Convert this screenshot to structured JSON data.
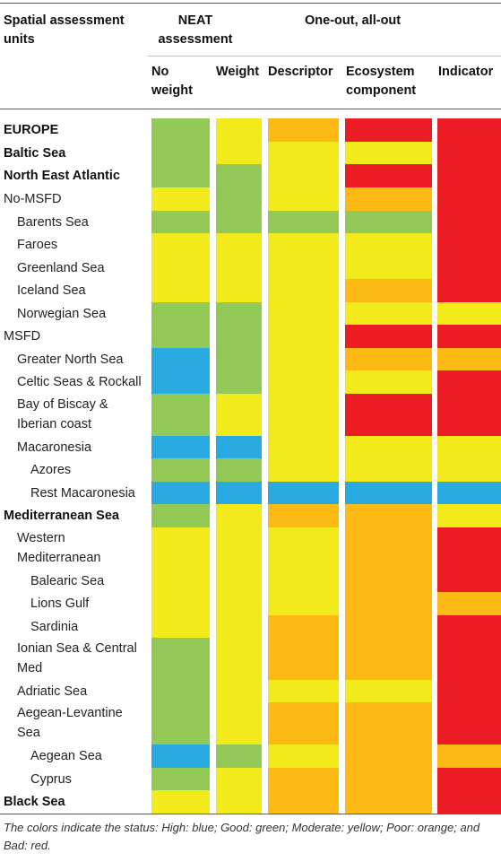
{
  "header": {
    "spatial": "Spatial assessment units",
    "neat": "NEAT assessment",
    "ooao": "One-out, all-out",
    "no_weight": "No weight",
    "weight": "Weight",
    "descriptor": "Descriptor",
    "ecosystem": "Ecosystem component",
    "indicator": "Indicator"
  },
  "status_colors": {
    "blue": "#29ABE2",
    "green": "#92C957",
    "yellow": "#F3EA1C",
    "orange": "#FDBA14",
    "red": "#EC1C24"
  },
  "rows": [
    {
      "label": "EUROPE",
      "bold": true,
      "indent": 0
    },
    {
      "label": "Baltic Sea",
      "bold": true,
      "indent": 0
    },
    {
      "label": "North East Atlantic",
      "bold": true,
      "indent": 0
    },
    {
      "label": "No-MSFD",
      "bold": false,
      "indent": 0
    },
    {
      "label": "Barents Sea",
      "bold": false,
      "indent": 1
    },
    {
      "label": "Faroes",
      "bold": false,
      "indent": 1
    },
    {
      "label": "Greenland Sea",
      "bold": false,
      "indent": 1
    },
    {
      "label": "Iceland Sea",
      "bold": false,
      "indent": 1
    },
    {
      "label": "Norwegian Sea",
      "bold": false,
      "indent": 1
    },
    {
      "label": "MSFD",
      "bold": false,
      "indent": 0
    },
    {
      "label": "Greater North Sea",
      "bold": false,
      "indent": 1
    },
    {
      "label": "Celtic Seas & Rockall",
      "bold": false,
      "indent": 1
    },
    {
      "label": "Bay of Biscay & Iberian coast",
      "bold": false,
      "indent": 1
    },
    {
      "label": "Macaronesia",
      "bold": false,
      "indent": 1
    },
    {
      "label": "Azores",
      "bold": false,
      "indent": 2
    },
    {
      "label": "Rest Macaronesia",
      "bold": false,
      "indent": 2
    },
    {
      "label": "Mediterranean Sea",
      "bold": true,
      "indent": 0
    },
    {
      "label": "Western Mediterranean",
      "bold": false,
      "indent": 1
    },
    {
      "label": "Balearic Sea",
      "bold": false,
      "indent": 2
    },
    {
      "label": "Lions Gulf",
      "bold": false,
      "indent": 2
    },
    {
      "label": "Sardinia",
      "bold": false,
      "indent": 2
    },
    {
      "label": "Ionian Sea & Central Med",
      "bold": false,
      "indent": 1
    },
    {
      "label": "Adriatic Sea",
      "bold": false,
      "indent": 1
    },
    {
      "label": "Aegean-Levantine Sea",
      "bold": false,
      "indent": 1
    },
    {
      "label": "Aegean Sea",
      "bold": false,
      "indent": 2
    },
    {
      "label": "Cyprus",
      "bold": false,
      "indent": 2
    },
    {
      "label": "Black Sea",
      "bold": true,
      "indent": 0
    }
  ],
  "status": {
    "no_weight": [
      "green",
      "green",
      "green",
      "yellow",
      "green",
      "yellow",
      "yellow",
      "yellow",
      "green",
      "green",
      "blue",
      "blue",
      "green",
      "blue",
      "green",
      "blue",
      "green",
      "yellow",
      "yellow",
      "yellow",
      "yellow",
      "green",
      "green",
      "green",
      "blue",
      "green",
      "yellow"
    ],
    "weight": [
      "yellow",
      "yellow",
      "green",
      "green",
      "green",
      "yellow",
      "yellow",
      "yellow",
      "green",
      "green",
      "green",
      "green",
      "yellow",
      "blue",
      "green",
      "blue",
      "yellow",
      "yellow",
      "yellow",
      "yellow",
      "yellow",
      "yellow",
      "yellow",
      "yellow",
      "green",
      "yellow",
      "yellow"
    ],
    "descriptor": [
      "orange",
      "yellow",
      "yellow",
      "yellow",
      "green",
      "yellow",
      "yellow",
      "yellow",
      "yellow",
      "yellow",
      "yellow",
      "yellow",
      "yellow",
      "yellow",
      "yellow",
      "blue",
      "orange",
      "yellow",
      "yellow",
      "yellow",
      "orange",
      "orange",
      "yellow",
      "orange",
      "yellow",
      "orange",
      "orange"
    ],
    "ecosystem": [
      "red",
      "yellow",
      "red",
      "orange",
      "green",
      "yellow",
      "yellow",
      "orange",
      "yellow",
      "red",
      "orange",
      "yellow",
      "red",
      "yellow",
      "yellow",
      "blue",
      "orange",
      "orange",
      "orange",
      "orange",
      "orange",
      "orange",
      "yellow",
      "orange",
      "orange",
      "orange",
      "orange"
    ],
    "indicator": [
      "red",
      "red",
      "red",
      "red",
      "red",
      "red",
      "red",
      "red",
      "yellow",
      "red",
      "orange",
      "red",
      "red",
      "yellow",
      "yellow",
      "blue",
      "yellow",
      "red",
      "red",
      "orange",
      "red",
      "red",
      "red",
      "red",
      "orange",
      "red",
      "red"
    ]
  },
  "footnote": "The colors indicate the status: High: blue; Good: green; Moderate: yellow; Poor: orange; and Bad: red."
}
